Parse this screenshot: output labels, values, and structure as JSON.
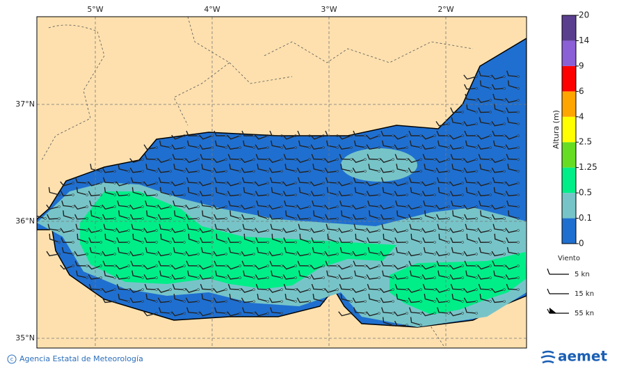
{
  "map": {
    "lon_ticks": [
      "5°W",
      "4°W",
      "3°W",
      "2°W"
    ],
    "lat_ticks": [
      "37°N",
      "36°N",
      "35°N"
    ],
    "colorbar": {
      "label": "Altura (m)",
      "levels": [
        0,
        0.1,
        0.5,
        1.25,
        2.5,
        4,
        6,
        9,
        14,
        20
      ],
      "colors": [
        "#1f6fd0",
        "#77c4c8",
        "#00ee88",
        "#66dd22",
        "#ffff00",
        "#ffa500",
        "#ff0000",
        "#8b5fd6",
        "#5b3f8f"
      ]
    },
    "wind_legend": {
      "title": "Viento",
      "items": [
        "5 kn",
        "15 kn",
        "55 kn"
      ]
    }
  },
  "footer": {
    "credit": "Agencia Estatal de Meteorología",
    "logo": "aemet"
  }
}
